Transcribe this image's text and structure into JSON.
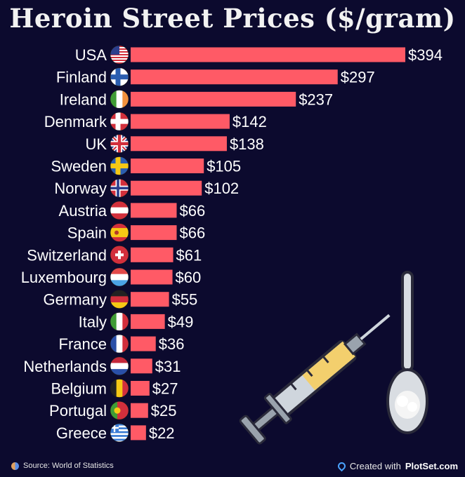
{
  "chart_data": {
    "type": "bar",
    "orientation": "horizontal",
    "title": "Heroin Street Prices ($/gram)",
    "categories": [
      "USA",
      "Finland",
      "Ireland",
      "Denmark",
      "UK",
      "Sweden",
      "Norway",
      "Austria",
      "Spain",
      "Switzerland",
      "Luxembourg",
      "Germany",
      "Italy",
      "France",
      "Netherlands",
      "Belgium",
      "Portugal",
      "Greece"
    ],
    "values": [
      394,
      297,
      237,
      142,
      138,
      105,
      102,
      66,
      66,
      61,
      60,
      55,
      49,
      36,
      31,
      27,
      25,
      22
    ],
    "value_labels": [
      "$394",
      "$297",
      "$237",
      "$142",
      "$138",
      "$105",
      "$102",
      "$66",
      "$66",
      "$61",
      "$60",
      "$55",
      "$49",
      "$36",
      "$31",
      "$27",
      "$25",
      "$22"
    ],
    "bar_color": "#ff5a66",
    "background_color": "#0c0a2e"
  },
  "flags": [
    "us-flag-icon",
    "finland-flag-icon",
    "ireland-flag-icon",
    "denmark-flag-icon",
    "uk-flag-icon",
    "sweden-flag-icon",
    "norway-flag-icon",
    "austria-flag-icon",
    "spain-flag-icon",
    "switzerland-flag-icon",
    "luxembourg-flag-icon",
    "germany-flag-icon",
    "italy-flag-icon",
    "france-flag-icon",
    "netherlands-flag-icon",
    "belgium-flag-icon",
    "portugal-flag-icon",
    "greece-flag-icon"
  ],
  "illustrations": [
    "syringe-icon",
    "spoon-icon"
  ],
  "footer": {
    "source": "Source: World of Statistics",
    "credit_prefix": "Created with",
    "credit_brand": "PlotSet.com"
  }
}
